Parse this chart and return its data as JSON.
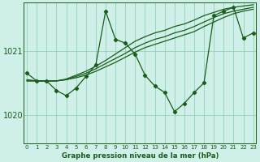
{
  "title": "Graphe pression niveau de la mer (hPa)",
  "bg_color": "#cff0e8",
  "grid_color": "#88ccaa",
  "line_color": "#1a5c1a",
  "xlim": [
    -0.3,
    23.3
  ],
  "ylim": [
    1019.55,
    1021.75
  ],
  "yticks": [
    1020,
    1021
  ],
  "xticks": [
    0,
    1,
    2,
    3,
    4,
    5,
    6,
    7,
    8,
    9,
    10,
    11,
    12,
    13,
    14,
    15,
    16,
    17,
    18,
    19,
    20,
    21,
    22,
    23
  ],
  "series_zigzag": [
    1020.65,
    1020.53,
    1020.53,
    1020.38,
    1020.3,
    1020.42,
    1020.6,
    1020.78,
    1021.62,
    1021.18,
    1021.12,
    1020.95,
    1020.62,
    1020.45,
    1020.35,
    1020.05,
    1020.18,
    1020.35,
    1020.5,
    1021.55,
    1021.62,
    1021.68,
    1021.2,
    1021.28
  ],
  "series_flat1": [
    1020.53,
    1020.53,
    1020.53,
    1020.53,
    1020.55,
    1020.58,
    1020.62,
    1020.68,
    1020.75,
    1020.82,
    1020.9,
    1020.98,
    1021.05,
    1021.1,
    1021.15,
    1021.2,
    1021.25,
    1021.3,
    1021.38,
    1021.45,
    1021.52,
    1021.58,
    1021.62,
    1021.65
  ],
  "series_flat2": [
    1020.53,
    1020.53,
    1020.53,
    1020.53,
    1020.55,
    1020.6,
    1020.65,
    1020.72,
    1020.8,
    1020.88,
    1020.96,
    1021.05,
    1021.12,
    1021.18,
    1021.22,
    1021.28,
    1021.32,
    1021.38,
    1021.45,
    1021.52,
    1021.58,
    1021.62,
    1021.65,
    1021.68
  ],
  "series_flat3": [
    1020.55,
    1020.53,
    1020.53,
    1020.53,
    1020.56,
    1020.62,
    1020.68,
    1020.76,
    1020.85,
    1020.95,
    1021.05,
    1021.15,
    1021.22,
    1021.28,
    1021.32,
    1021.38,
    1021.42,
    1021.48,
    1021.55,
    1021.6,
    1021.65,
    1021.68,
    1021.7,
    1021.72
  ]
}
